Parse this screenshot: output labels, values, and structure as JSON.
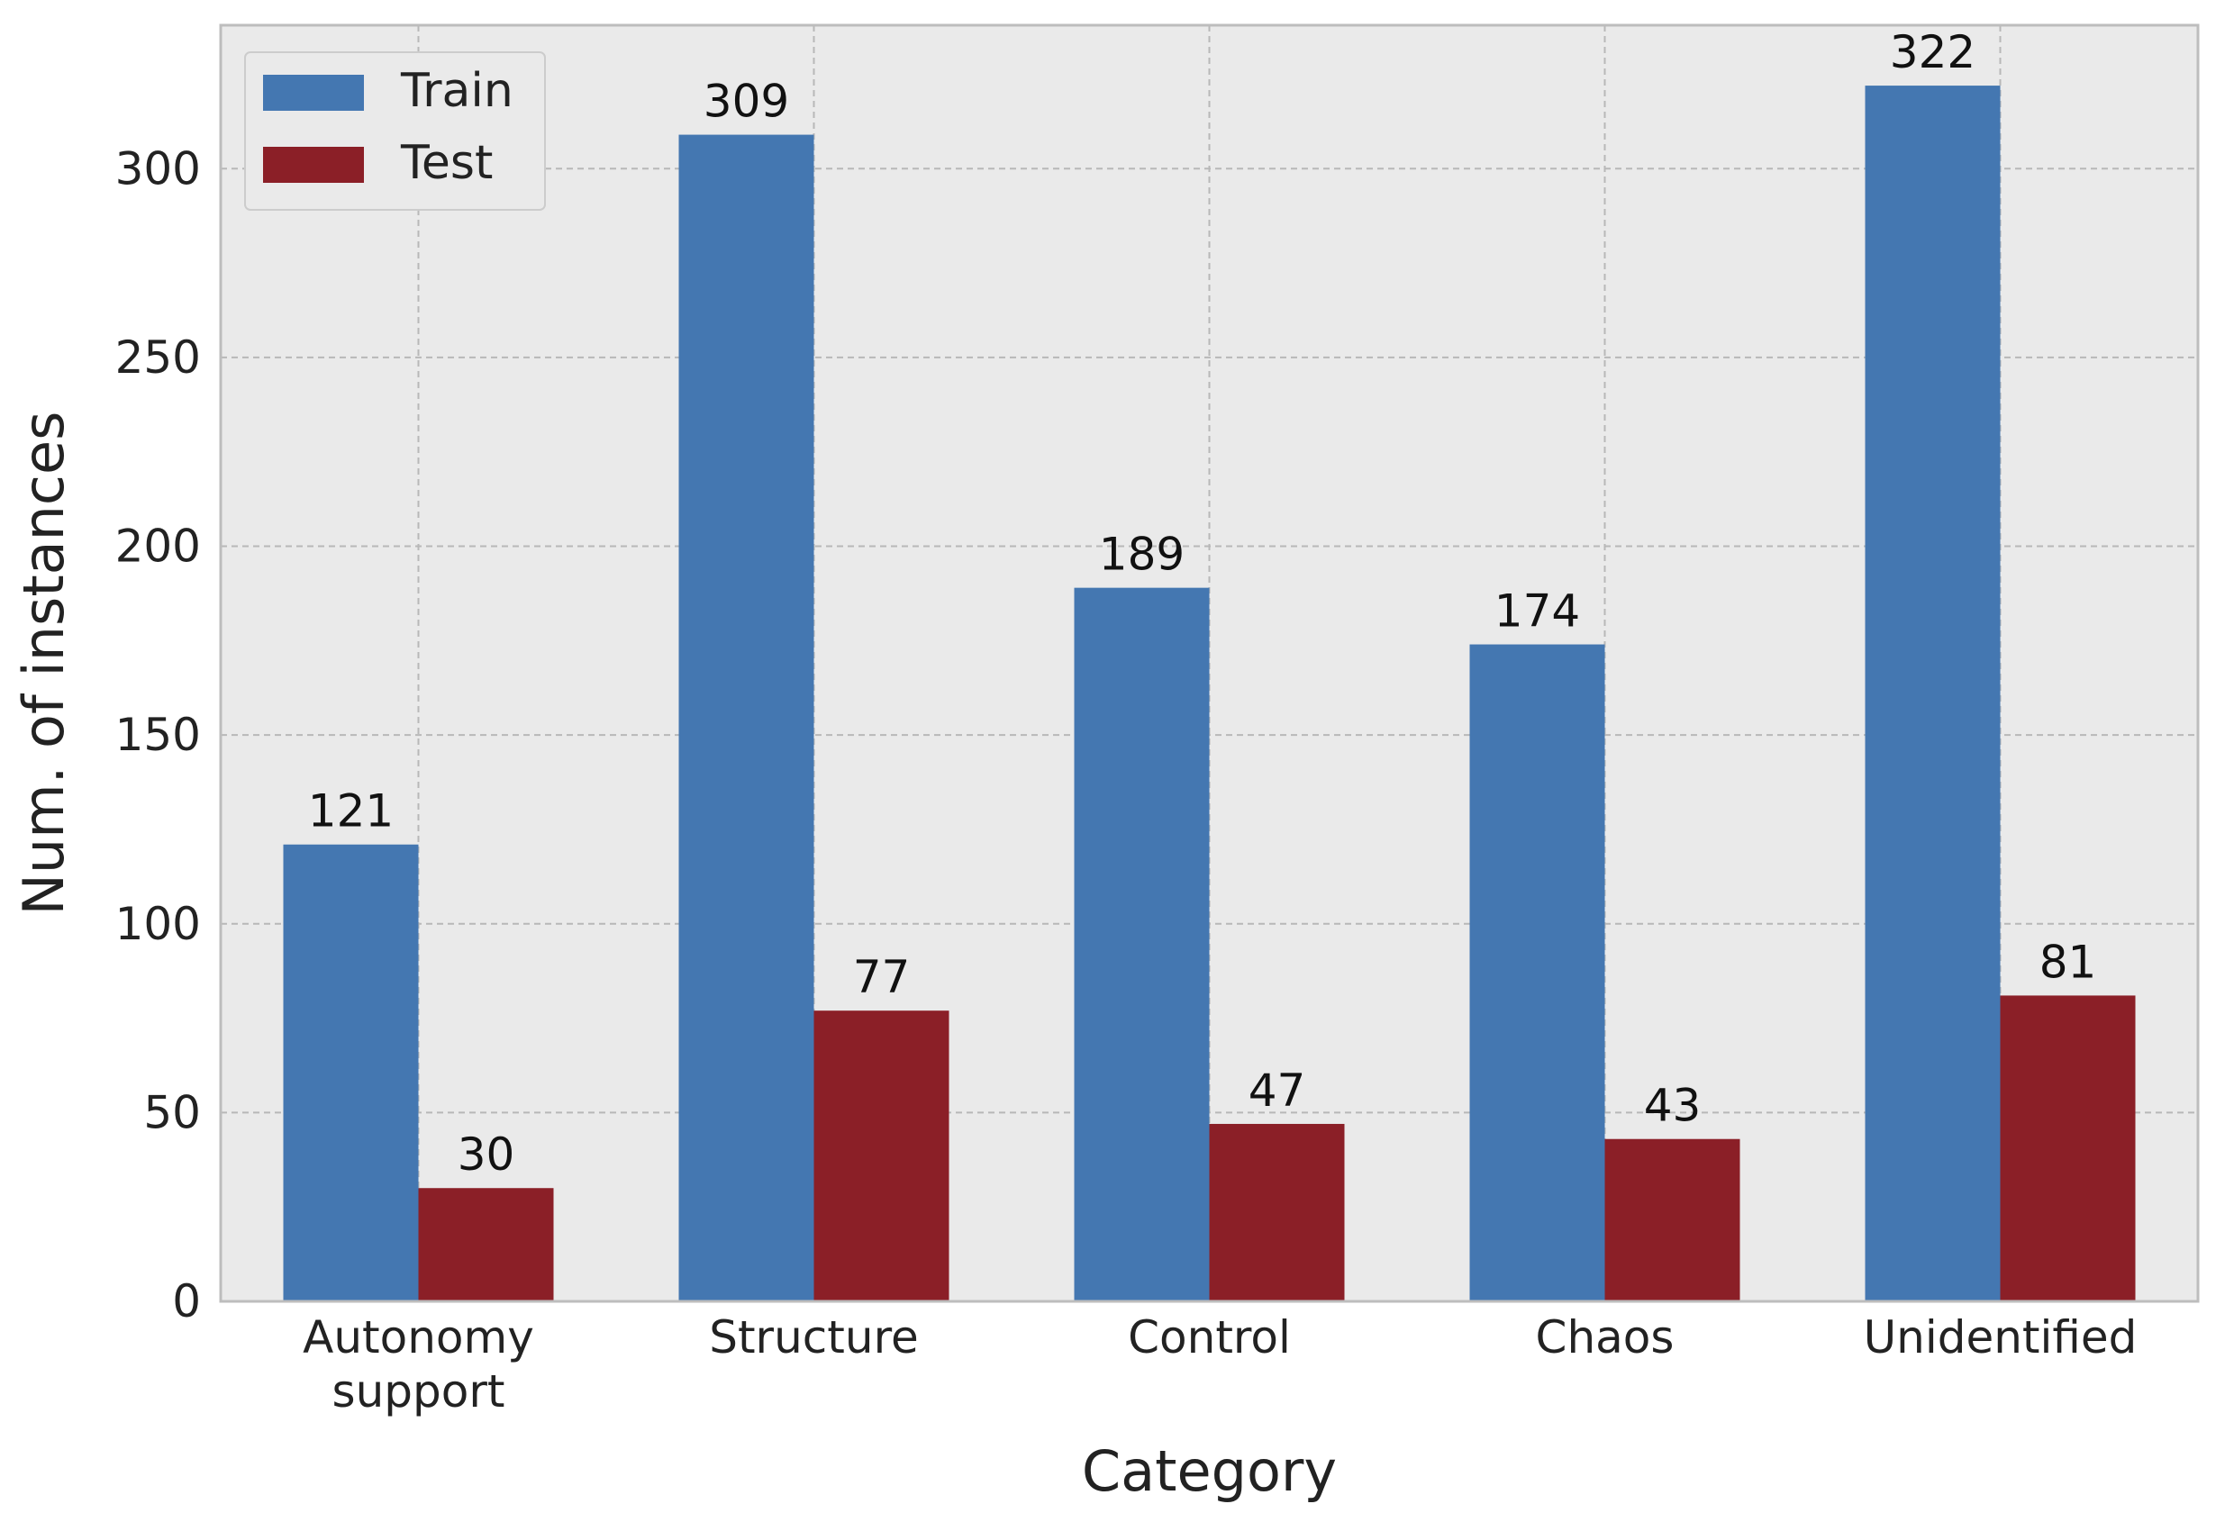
{
  "chart_data": {
    "type": "bar",
    "categories": [
      [
        "Autonomy",
        "support"
      ],
      [
        "Structure"
      ],
      [
        "Control"
      ],
      [
        "Chaos"
      ],
      [
        "Unidentified"
      ]
    ],
    "series": [
      {
        "name": "Train",
        "color": "#4477b1",
        "values": [
          121,
          309,
          189,
          174,
          322
        ]
      },
      {
        "name": "Test",
        "color": "#8b1f27",
        "values": [
          30,
          77,
          47,
          43,
          81
        ]
      }
    ],
    "xlabel": "Category",
    "ylabel": "Num. of instances",
    "ylim": [
      0,
      338
    ],
    "yticks": [
      0,
      50,
      100,
      150,
      200,
      250,
      300
    ],
    "grid": true,
    "legend_position": "top-left",
    "background_color": "#eaeaea"
  }
}
